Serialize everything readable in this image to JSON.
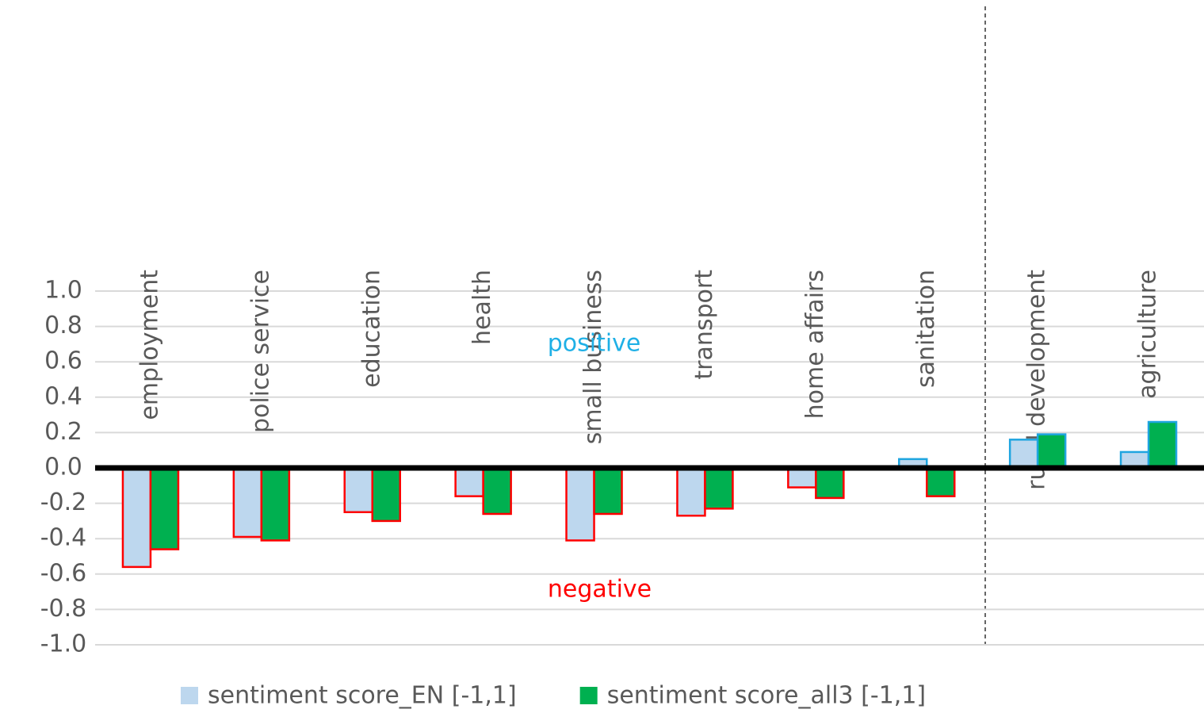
{
  "chart_data": {
    "type": "bar",
    "categories": [
      "employment",
      "police service",
      "education",
      "health",
      "small business",
      "transport",
      "home affairs",
      "sanitation",
      "rural development",
      "agriculture"
    ],
    "series": [
      {
        "name": "sentiment score_EN [-1,1]",
        "color": "#bdd7ee",
        "values": [
          -0.56,
          -0.39,
          -0.25,
          -0.16,
          -0.41,
          -0.27,
          -0.11,
          0.05,
          0.16,
          0.09
        ]
      },
      {
        "name": "sentiment score_all3 [-1,1]",
        "color": "#00b050",
        "values": [
          -0.46,
          -0.41,
          -0.3,
          -0.26,
          -0.26,
          -0.23,
          -0.17,
          -0.16,
          0.19,
          0.26
        ]
      }
    ],
    "negative_edge_color": "#ff0000",
    "positive_edge_color": "#1fa5e0",
    "ylim": [
      -1.0,
      1.0
    ],
    "yticks": [
      {
        "value": 1.0,
        "label": "1.0"
      },
      {
        "value": 0.8,
        "label": "0.8"
      },
      {
        "value": 0.6,
        "label": "0.6"
      },
      {
        "value": 0.4,
        "label": "0.4"
      },
      {
        "value": 0.2,
        "label": "0.2"
      },
      {
        "value": 0.0,
        "label": "0.0"
      },
      {
        "value": -0.2,
        "label": "-0.2"
      },
      {
        "value": -0.4,
        "label": "-0.4"
      },
      {
        "value": -0.6,
        "label": "-0.6"
      },
      {
        "value": -0.8,
        "label": "-0.8"
      },
      {
        "value": -1.0,
        "label": "-1.0"
      }
    ],
    "grid": true,
    "annotations": [
      {
        "text": "positive",
        "color": "#1fb0e6",
        "x": 4.5,
        "y": 0.7
      },
      {
        "text": "negative",
        "color": "#ff0000",
        "x": 4.55,
        "y": -0.69
      }
    ],
    "legend": "bottom"
  }
}
